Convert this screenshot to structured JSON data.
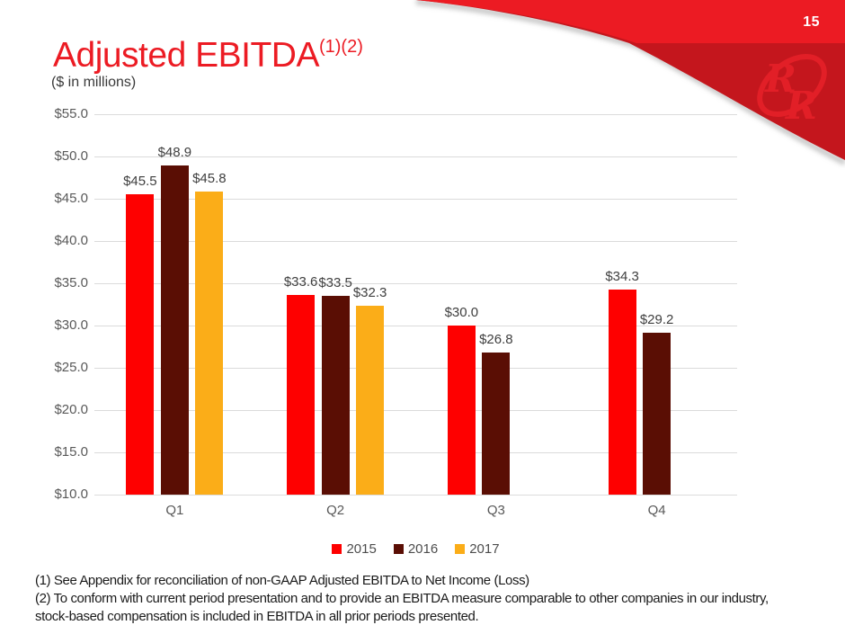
{
  "page_number": "15",
  "title": {
    "text": "Adjusted EBITDA",
    "superscript": "(1)(2)"
  },
  "subtitle": "($ in millions)",
  "logo": {
    "name": "red-robin-rr-monogram",
    "letter": "R"
  },
  "colors": {
    "banner_red": "#EC1B23",
    "banner_dark_red": "#C4161D",
    "banner_shadow": "#8a8a8a",
    "logo_red": "#E52028",
    "title_red": "#EC1B23",
    "grid": "#DBDBDB",
    "axis_text": "#595959",
    "value_text": "#3F3F3F"
  },
  "chart_data": {
    "type": "bar",
    "title": "Adjusted EBITDA ($ in millions)",
    "categories": [
      "Q1",
      "Q2",
      "Q3",
      "Q4"
    ],
    "series": [
      {
        "name": "2015",
        "color": "#FE0000",
        "values": [
          45.5,
          33.6,
          30.0,
          34.3
        ]
      },
      {
        "name": "2016",
        "color": "#5A0E04",
        "values": [
          48.9,
          33.5,
          26.8,
          29.2
        ]
      },
      {
        "name": "2017",
        "color": "#FBAD18",
        "values": [
          45.8,
          32.3,
          null,
          null
        ]
      }
    ],
    "ylim": [
      10,
      55
    ],
    "ytick_step": 5,
    "ytick_prefix": "$",
    "value_label_prefix": "$",
    "grid": true,
    "legend_position": "bottom"
  },
  "footnotes": {
    "lines": [
      "(1) See Appendix for reconciliation of non-GAAP Adjusted EBITDA to Net Income (Loss)",
      "(2) To conform with current period presentation and to provide an EBITDA measure comparable to other companies in our industry,",
      "stock-based compensation is included in EBITDA in all prior periods presented."
    ]
  }
}
